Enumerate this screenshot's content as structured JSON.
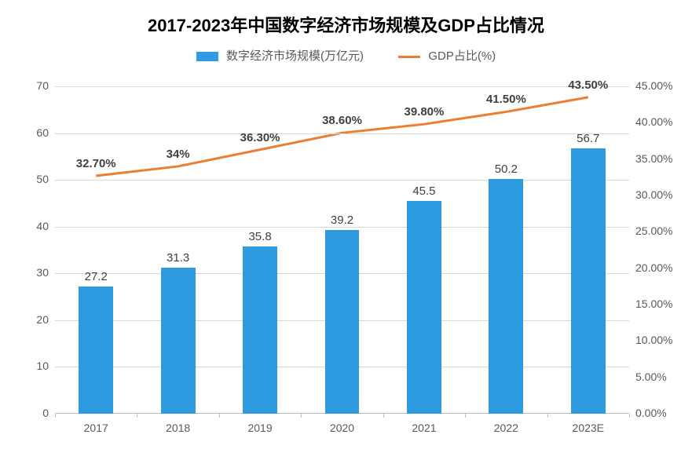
{
  "chart": {
    "title": "2017-2023年中国数字经济市场规模及GDP占比情况",
    "title_fontsize": 22,
    "legend": {
      "bar_label": "数字经济市场规模(万亿元)",
      "line_label": "GDP占比(%)",
      "fontsize": 15
    },
    "categories": [
      "2017",
      "2018",
      "2019",
      "2020",
      "2021",
      "2022",
      "2023E"
    ],
    "bar_series": {
      "values": [
        27.2,
        31.3,
        35.8,
        39.2,
        45.5,
        50.2,
        56.7
      ],
      "labels": [
        "27.2",
        "31.3",
        "35.8",
        "39.2",
        "45.5",
        "50.2",
        "56.7"
      ],
      "color": "#2e9be0",
      "bar_width_ratio": 0.42
    },
    "line_series": {
      "values": [
        32.7,
        34.0,
        36.3,
        38.6,
        39.8,
        41.5,
        43.5
      ],
      "labels": [
        "32.70%",
        "34%",
        "36.30%",
        "38.60%",
        "39.80%",
        "41.50%",
        "43.50%"
      ],
      "color": "#ed7d31",
      "line_width": 3
    },
    "y_left": {
      "min": 0,
      "max": 70,
      "step": 10,
      "ticks": [
        "0",
        "10",
        "20",
        "30",
        "40",
        "50",
        "60",
        "70"
      ]
    },
    "y_right": {
      "min": 0,
      "max": 45,
      "step": 5,
      "ticks": [
        "0.00%",
        "5.00%",
        "10.00%",
        "15.00%",
        "20.00%",
        "25.00%",
        "30.00%",
        "35.00%",
        "40.00%",
        "45.00%"
      ]
    },
    "grid_color": "#d9d9d9",
    "axis_label_color": "#595959",
    "axis_label_fontsize": 14,
    "background_color": "#ffffff"
  }
}
